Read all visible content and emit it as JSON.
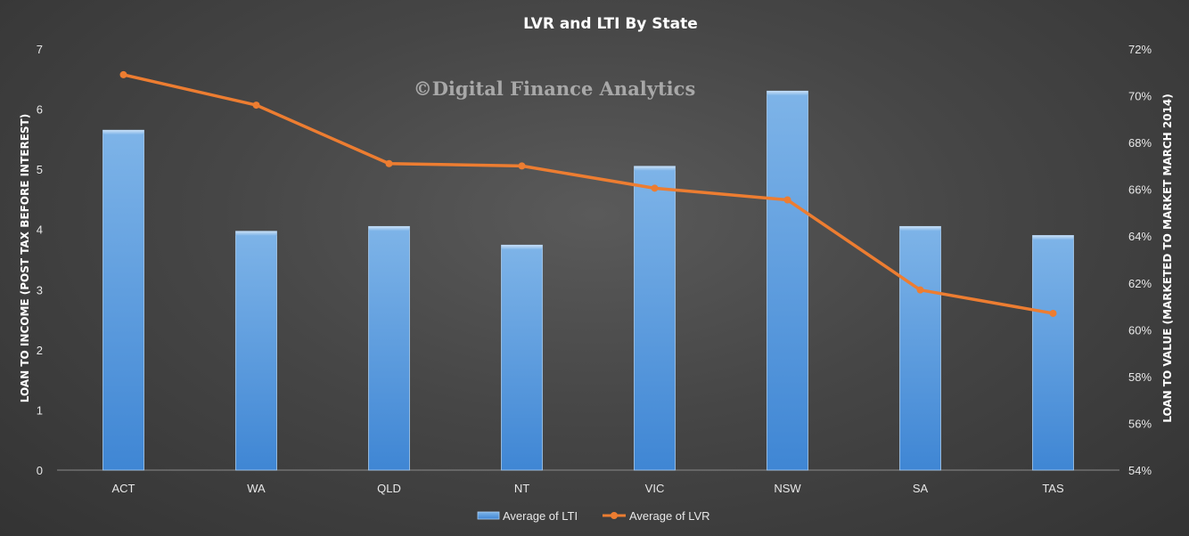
{
  "chart_data": {
    "type": "bar",
    "title": "LVR  and  LTI  By State",
    "watermark": "©Digital Finance Analytics",
    "categories": [
      "ACT",
      "WA",
      "QLD",
      "NT",
      "VIC",
      "NSW",
      "SA",
      "TAS"
    ],
    "series": [
      {
        "name": "Average of LTI",
        "type": "bar",
        "axis": "left",
        "color": "#5b9bd5",
        "values": [
          5.65,
          3.97,
          4.05,
          3.74,
          5.05,
          6.3,
          4.05,
          3.9
        ]
      },
      {
        "name": "Average of LVR",
        "type": "line",
        "axis": "right",
        "color": "#ed7d31",
        "values": [
          70.9,
          69.6,
          67.1,
          67.0,
          66.05,
          65.55,
          61.7,
          60.7
        ]
      }
    ],
    "ylabel": "LOAN TO INCOME (POST TAX BEFORE INTEREST)",
    "ylabel_right": "LOAN TO VALUE (MARKETED TO MARKET MARCH 2014)",
    "ylim": [
      0,
      7
    ],
    "ylim_right": [
      54,
      72
    ],
    "yticks": [
      "0",
      "1",
      "2",
      "3",
      "4",
      "5",
      "6",
      "7"
    ],
    "yticks_right": [
      "54%",
      "56%",
      "58%",
      "60%",
      "62%",
      "64%",
      "66%",
      "68%",
      "70%",
      "72%"
    ],
    "grid": false,
    "legend_position": "bottom"
  }
}
